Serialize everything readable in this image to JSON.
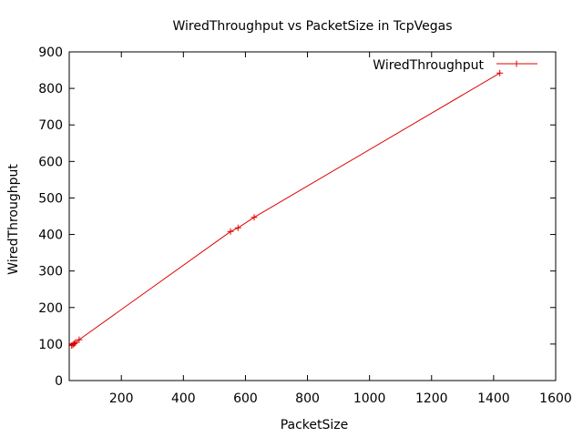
{
  "chart_data": {
    "type": "line",
    "title": "WiredThroughput vs PacketSize in TcpVegas",
    "xlabel": "PacketSize",
    "ylabel": "WiredThroughput",
    "xlim": [
      32,
      1600
    ],
    "ylim": [
      0,
      900
    ],
    "xticks": [
      200,
      400,
      600,
      800,
      1000,
      1200,
      1400,
      1600
    ],
    "yticks": [
      0,
      100,
      200,
      300,
      400,
      500,
      600,
      700,
      800,
      900
    ],
    "grid": false,
    "legend_position": "top-right",
    "series": [
      {
        "name": "WiredThroughput",
        "color": "#e00000",
        "marker": "plus",
        "x": [
          40,
          44,
          48,
          52,
          64,
          552,
          576,
          628,
          1420
        ],
        "y": [
          96,
          98,
          101,
          104,
          112,
          408,
          418,
          447,
          842
        ]
      }
    ]
  }
}
